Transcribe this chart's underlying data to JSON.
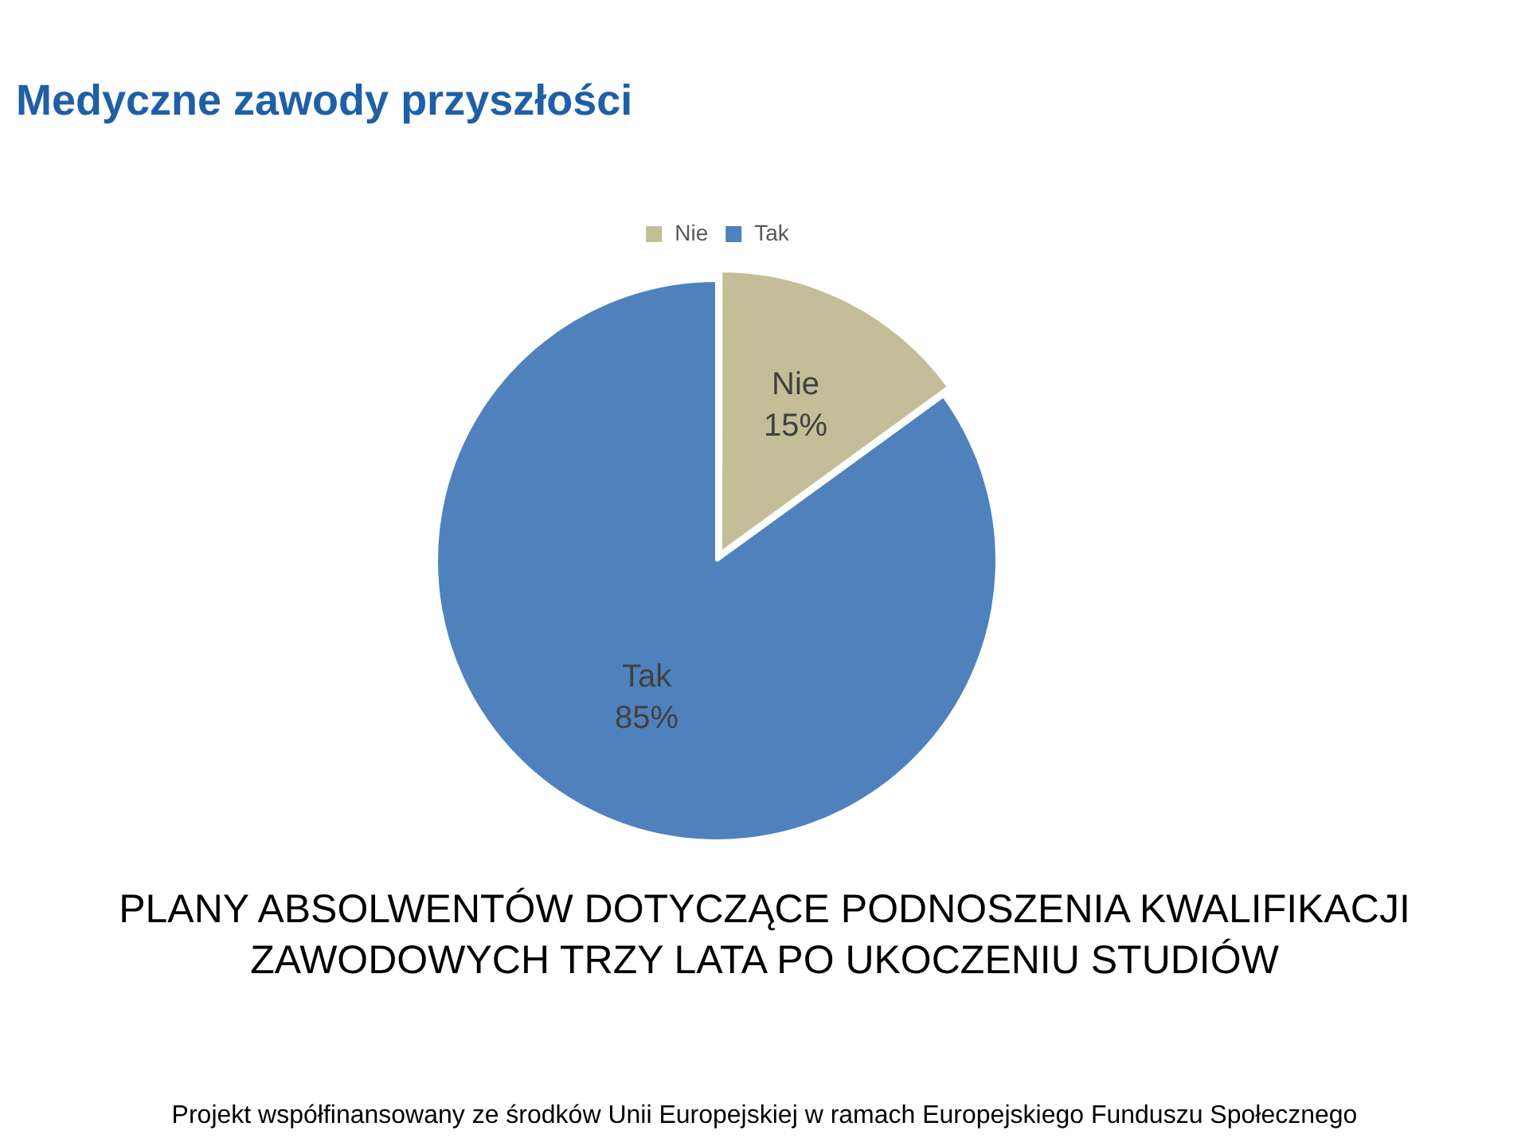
{
  "chart_data": {
    "type": "pie",
    "title": "Medyczne zawody przyszłości",
    "subtitle": "PLANY ABSOLWENTÓW DOTYCZĄCE PODNOSZENIA KWALIFIKACJI ZAWODOWYCH TRZY LATA PO UKOCZENIU STUDIÓW",
    "categories": [
      "Nie",
      "Tak"
    ],
    "values": [
      15,
      85
    ],
    "colors": [
      "#c4bd97",
      "#4f81bd"
    ],
    "value_labels": [
      "15%",
      "85%"
    ],
    "legend": "top",
    "annotations": [
      "Projekt współfinansowany ze środków Unii Europejskiej w ramach Europejskiego Funduszu Społecznego"
    ]
  }
}
